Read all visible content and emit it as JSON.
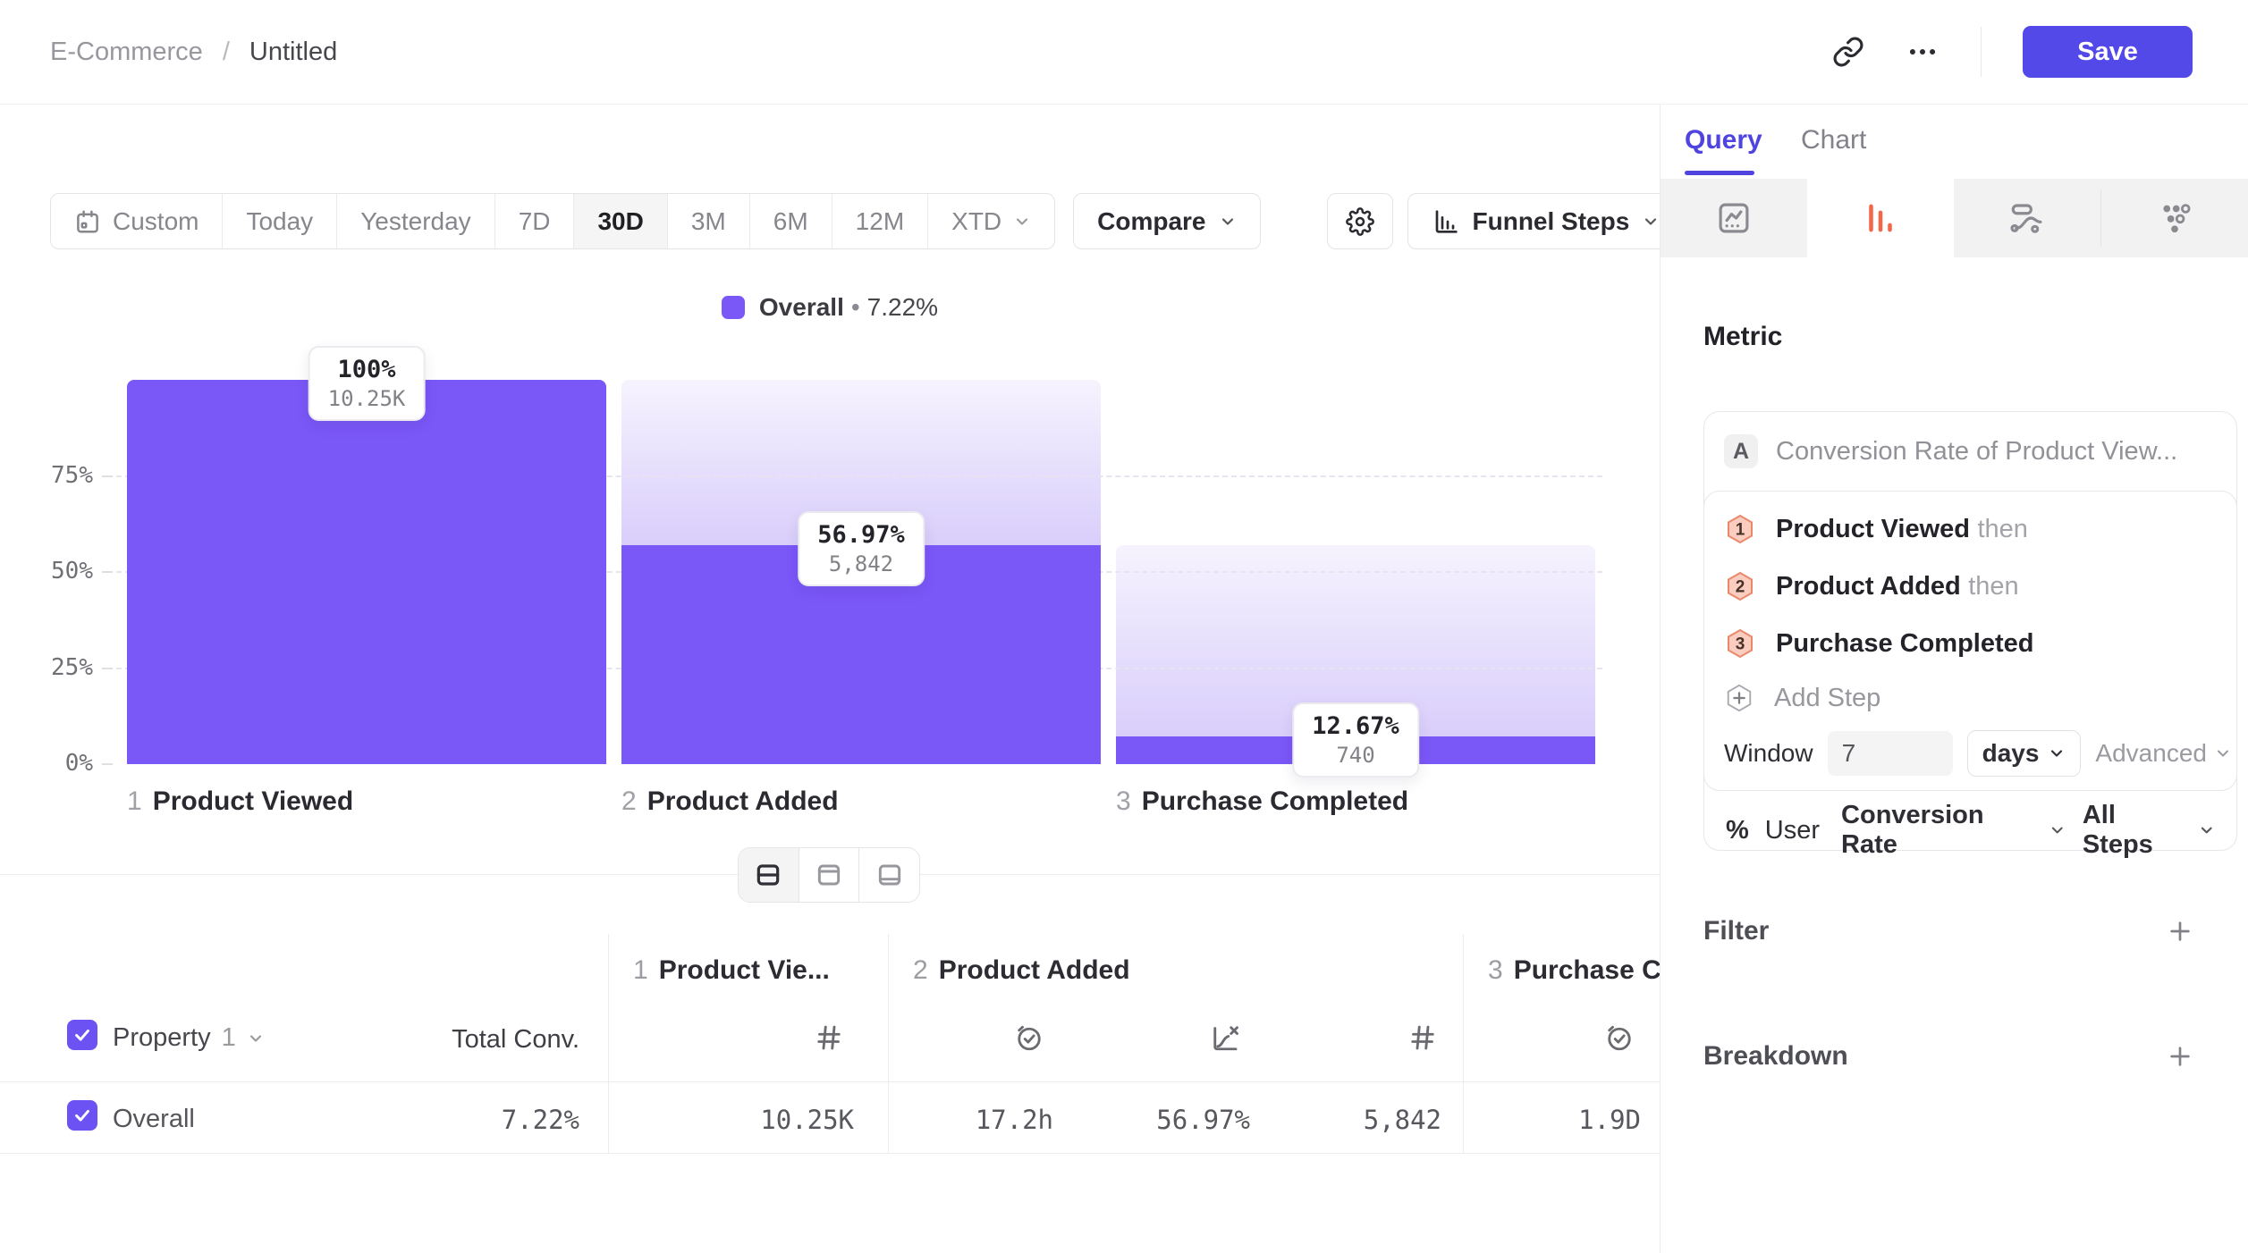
{
  "app": {
    "breadcrumb": {
      "parent": "E-Commerce",
      "separator": "/",
      "current": "Untitled"
    },
    "save_label": "Save"
  },
  "toolbar": {
    "date_ranges": [
      {
        "label": "Custom"
      },
      {
        "label": "Today"
      },
      {
        "label": "Yesterday"
      },
      {
        "label": "7D"
      },
      {
        "label": "30D"
      },
      {
        "label": "3M"
      },
      {
        "label": "6M"
      },
      {
        "label": "12M"
      },
      {
        "label": "XTD"
      }
    ],
    "active_range": "30D",
    "compare_label": "Compare",
    "view_selector_label": "Funnel Steps"
  },
  "legend": {
    "series_name": "Overall",
    "separator": "•",
    "value": "7.22%",
    "swatch_color": "#7A57F7"
  },
  "chart_data": {
    "type": "funnel_bar",
    "unit": "%",
    "y_max": 100,
    "grid": "dashed",
    "bar_color": "#7A57F7",
    "y_ticks": [
      {
        "label": "75%",
        "value": 75
      },
      {
        "label": "50%",
        "value": 50
      },
      {
        "label": "25%",
        "value": 25
      },
      {
        "label": "0%",
        "value": 0
      }
    ],
    "steps": [
      {
        "index": "1",
        "name": "Product Viewed",
        "overall_pct": 100,
        "label_pct": "100%",
        "label_count": "10.25K",
        "count": 10250
      },
      {
        "index": "2",
        "name": "Product Added",
        "overall_pct": 56.97,
        "label_pct": "56.97%",
        "label_count": "5,842",
        "count": 5842
      },
      {
        "index": "3",
        "name": "Purchase Completed",
        "overall_pct": 7.22,
        "label_pct": "12.67%",
        "label_count": "740",
        "count": 740
      }
    ]
  },
  "table": {
    "property_label": "Property",
    "property_index": "1",
    "total_conv_label": "Total Conv.",
    "columns": [
      {
        "num": "1",
        "name": "Product Vie...",
        "metric_icons": [
          "hash"
        ]
      },
      {
        "num": "2",
        "name": "Product Added",
        "metric_icons": [
          "clock-check",
          "chart-percent",
          "hash"
        ]
      },
      {
        "num": "3",
        "name": "Purchase C",
        "metric_icons": [
          "clock-check"
        ]
      }
    ],
    "row": {
      "name": "Overall",
      "total_conv": "7.22%",
      "values": [
        "10.25K",
        "17.2h",
        "56.97%",
        "5,842",
        "1.9D"
      ]
    }
  },
  "query_panel": {
    "tabs": [
      {
        "label": "Query"
      },
      {
        "label": "Chart"
      }
    ],
    "active_tab": "Query",
    "metric_heading": "Metric",
    "metric": {
      "series_letter": "A",
      "series_title": "Conversion Rate of Product View...",
      "steps": [
        {
          "num": "1",
          "name": "Product Viewed",
          "suffix": "then"
        },
        {
          "num": "2",
          "name": "Product Added",
          "suffix": "then"
        },
        {
          "num": "3",
          "name": "Purchase Completed",
          "suffix": ""
        }
      ],
      "add_step_label": "Add Step",
      "window_label": "Window",
      "window_value": "7",
      "window_unit": "days",
      "advanced_label": "Advanced",
      "measure_prefix": "%",
      "measure_entity": "User",
      "measure_type": "Conversion Rate",
      "measure_scope": "All Steps"
    },
    "filter_label": "Filter",
    "breakdown_label": "Breakdown"
  },
  "colors": {
    "accent_purple": "#5348E8",
    "query_tab_purple": "#4F44E0",
    "bar_purple": "#7A57F7",
    "funnel_tab_orange": "#F3664A",
    "hexagon_fill": "#FACDBF",
    "hexagon_stroke": "#E9896C",
    "checkbox_purple": "#6C52F2"
  }
}
